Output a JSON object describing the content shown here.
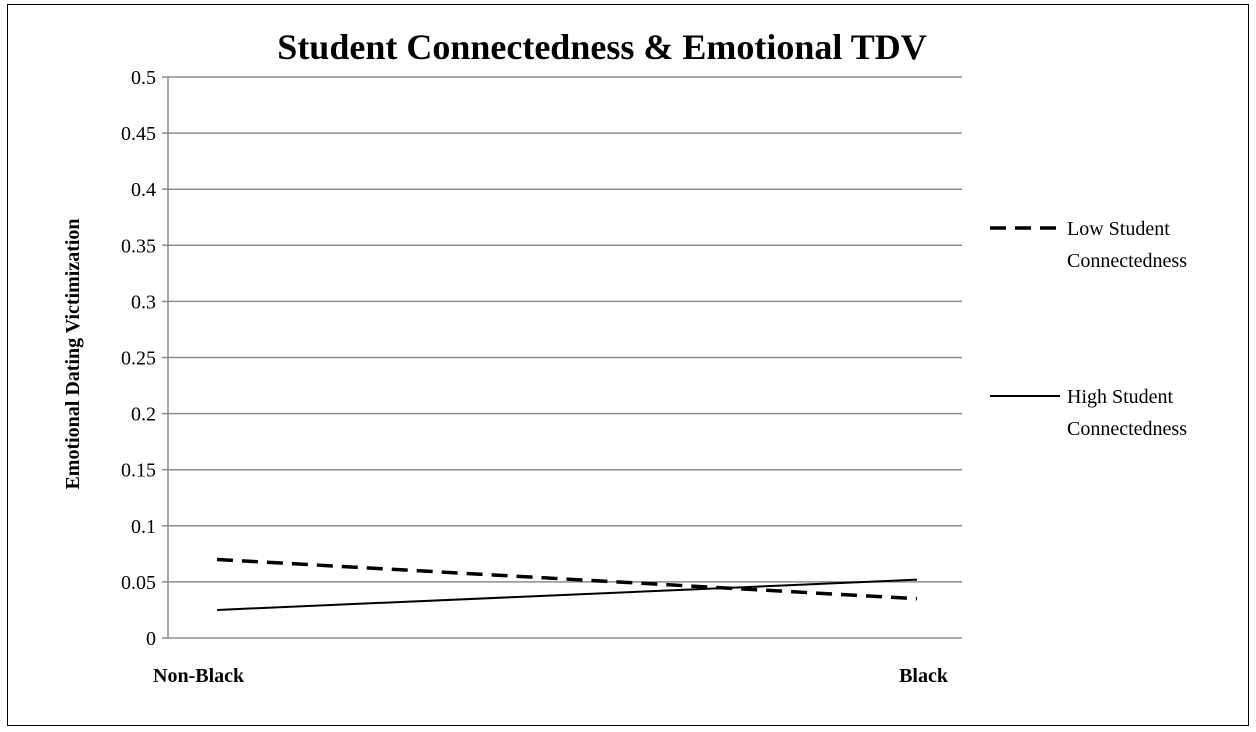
{
  "chart_data": {
    "type": "line",
    "title": "Student Connectedness & Emotional TDV",
    "xlabel": "",
    "ylabel": "Emotional Dating Victimization",
    "categories": [
      "Non-Black",
      "Black"
    ],
    "ylim": [
      0,
      0.5
    ],
    "yticks": [
      "0",
      "0.05",
      "0.1",
      "0.15",
      "0.2",
      "0.25",
      "0.3",
      "0.35",
      "0.4",
      "0.45",
      "0.5"
    ],
    "grid": true,
    "legend_position": "right",
    "series": [
      {
        "name": "Low Student Connectedness",
        "name_lines": [
          "Low Student",
          "Connectedness"
        ],
        "values": [
          0.07,
          0.035
        ],
        "style": "dashed",
        "color": "#000000"
      },
      {
        "name": "High Student Connectedness",
        "name_lines": [
          "High Student",
          "Connectedness"
        ],
        "values": [
          0.025,
          0.052
        ],
        "style": "solid",
        "color": "#000000"
      }
    ]
  }
}
